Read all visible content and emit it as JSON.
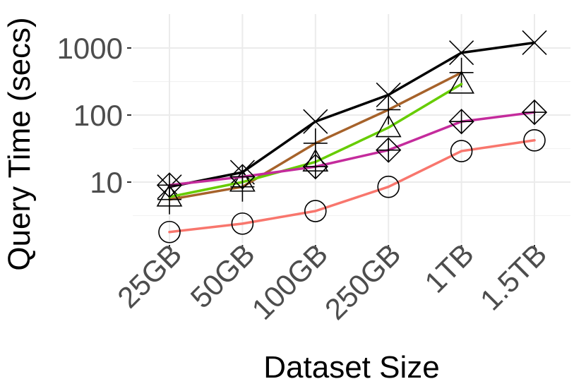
{
  "chart_data": {
    "type": "line",
    "title": "",
    "xlabel": "Dataset Size",
    "ylabel": "Query Time (secs)",
    "yscale": "log10",
    "ylim": [
      1.3,
      2000
    ],
    "yticks": [
      10,
      100,
      1000
    ],
    "ytick_labels": [
      "10",
      "100",
      "1000"
    ],
    "grid": true,
    "legend": "none",
    "categories": [
      "25GB",
      "50GB",
      "100GB",
      "250GB",
      "1TB",
      "1.5TB"
    ],
    "series": [
      {
        "color": "#000000",
        "marker": "x",
        "values": [
          8.5,
          14,
          80,
          200,
          850,
          1200
        ]
      },
      {
        "color": "#a6622a",
        "marker": "plus",
        "values": [
          5.5,
          8.5,
          38,
          120,
          430,
          null
        ]
      },
      {
        "color": "#66cc00",
        "marker": "triangle",
        "values": [
          6,
          10,
          20,
          65,
          290,
          null
        ]
      },
      {
        "color": "#c42b9c",
        "marker": "diamond-plus",
        "values": [
          9,
          12,
          17,
          30,
          80,
          110
        ]
      },
      {
        "color": "#f8766d",
        "marker": "circle",
        "values": [
          1.8,
          2.4,
          3.7,
          8.5,
          29,
          42
        ]
      }
    ]
  }
}
